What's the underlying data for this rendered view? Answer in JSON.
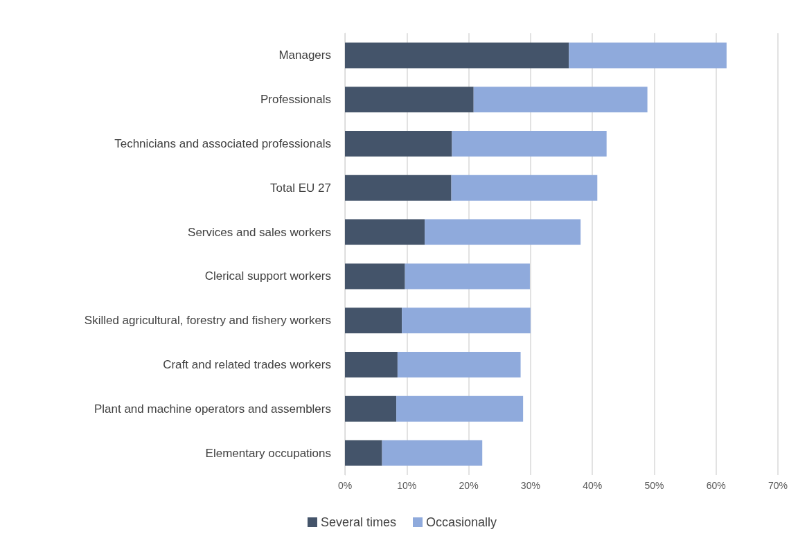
{
  "chart_data": {
    "type": "bar",
    "orientation": "horizontal",
    "stacked": true,
    "categories": [
      "Managers",
      "Professionals",
      "Technicians and associated professionals",
      "Total EU 27",
      "Services and sales workers",
      "Clerical support workers",
      "Skilled agricultural, forestry and fishery workers",
      "Craft and related trades workers",
      "Plant and machine operators and assemblers",
      "Elementary occupations"
    ],
    "series": [
      {
        "name": "Several times",
        "color": "#44546a",
        "values": [
          36.2,
          20.8,
          17.3,
          17.2,
          12.9,
          9.7,
          9.2,
          8.5,
          8.3,
          6.0
        ]
      },
      {
        "name": "Occasionally",
        "color": "#8faadc",
        "values": [
          25.5,
          28.1,
          25.0,
          23.6,
          25.2,
          20.2,
          20.8,
          19.9,
          20.5,
          16.2
        ]
      }
    ],
    "xlim": [
      0,
      70
    ],
    "xticks": [
      {
        "value": 0,
        "label": "0%"
      },
      {
        "value": 10,
        "label": "10%"
      },
      {
        "value": 20,
        "label": "20%"
      },
      {
        "value": 30,
        "label": "30%"
      },
      {
        "value": 40,
        "label": "40%"
      },
      {
        "value": 50,
        "label": "50%"
      },
      {
        "value": 60,
        "label": "60%"
      },
      {
        "value": 70,
        "label": "70%"
      }
    ],
    "grid": "x",
    "legend": "bottom"
  }
}
